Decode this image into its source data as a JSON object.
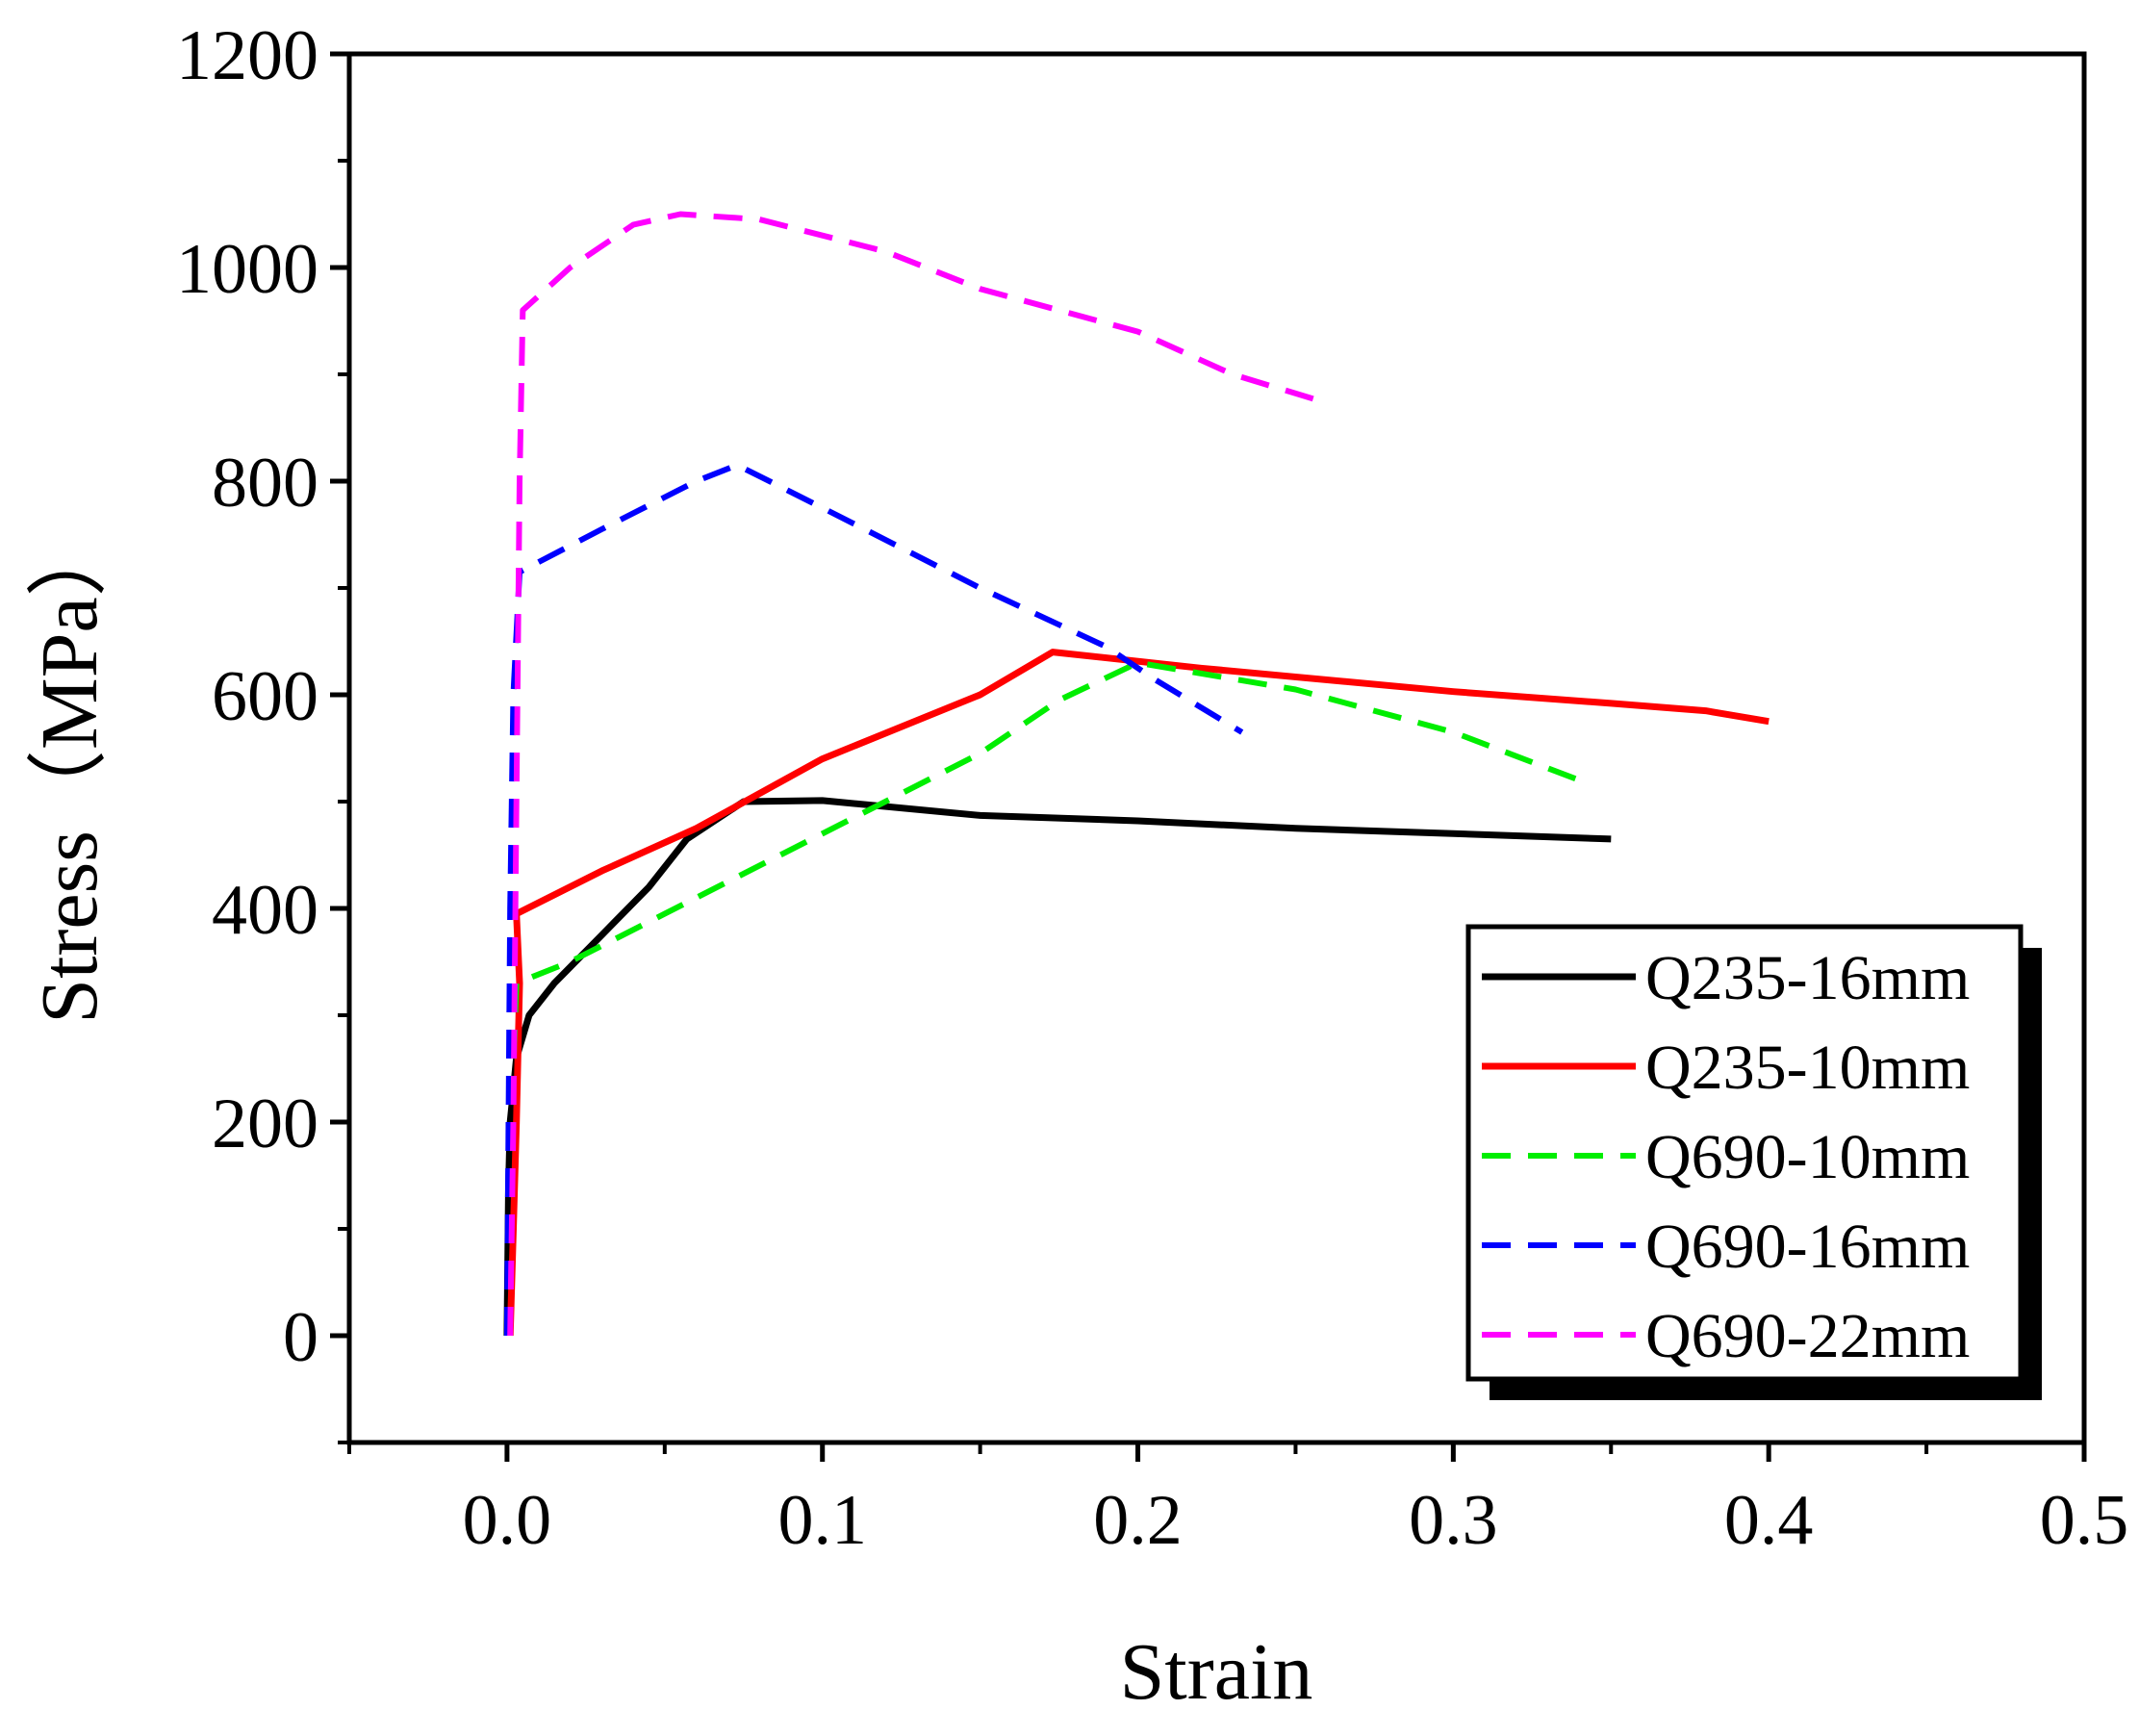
{
  "chart_data": {
    "type": "line",
    "title": "",
    "xlabel": "Strain",
    "ylabel": "Stress（MPa）",
    "xlim": [
      -0.05,
      0.5
    ],
    "ylim": [
      -100,
      1200
    ],
    "x_ticks": [
      0.0,
      0.1,
      0.2,
      0.3,
      0.4,
      0.5
    ],
    "x_tick_labels": [
      "0.0",
      "0.1",
      "0.2",
      "0.3",
      "0.4",
      "0.5"
    ],
    "y_ticks": [
      0,
      200,
      400,
      600,
      800,
      1000,
      1200
    ],
    "y_tick_labels": [
      "0",
      "200",
      "400",
      "600",
      "800",
      "1000",
      "1200"
    ],
    "grid": false,
    "legend_position": "bottom-right",
    "series": [
      {
        "name": "Q235-16mm",
        "color": "#000000",
        "style": "solid",
        "points": [
          [
            0,
            0
          ],
          [
            0.0005,
            140
          ],
          [
            0.001,
            200
          ],
          [
            0.003,
            260
          ],
          [
            0.007,
            300
          ],
          [
            0.015,
            330
          ],
          [
            0.03,
            375
          ],
          [
            0.045,
            420
          ],
          [
            0.057,
            465
          ],
          [
            0.075,
            500
          ],
          [
            0.1,
            501
          ],
          [
            0.15,
            487
          ],
          [
            0.2,
            482
          ],
          [
            0.25,
            475
          ],
          [
            0.3,
            470
          ],
          [
            0.35,
            465
          ]
        ]
      },
      {
        "name": "Q235-10mm",
        "color": "#ff0000",
        "style": "solid",
        "points": [
          [
            0.001,
            0
          ],
          [
            0.002,
            100
          ],
          [
            0.003,
            200
          ],
          [
            0.004,
            330
          ],
          [
            0.003,
            395
          ],
          [
            0.03,
            435
          ],
          [
            0.06,
            475
          ],
          [
            0.1,
            540
          ],
          [
            0.15,
            600
          ],
          [
            0.173,
            640
          ],
          [
            0.22,
            625
          ],
          [
            0.3,
            603
          ],
          [
            0.35,
            592
          ],
          [
            0.38,
            585
          ],
          [
            0.4,
            575
          ]
        ]
      },
      {
        "name": "Q690-10mm",
        "color": "#00ee00",
        "style": "dashed",
        "points": [
          [
            0,
            0
          ],
          [
            0.001,
            150
          ],
          [
            0.002,
            250
          ],
          [
            0.003,
            330
          ],
          [
            0.02,
            350
          ],
          [
            0.05,
            395
          ],
          [
            0.1,
            470
          ],
          [
            0.15,
            545
          ],
          [
            0.175,
            595
          ],
          [
            0.2,
            630
          ],
          [
            0.25,
            605
          ],
          [
            0.3,
            565
          ],
          [
            0.34,
            520
          ]
        ]
      },
      {
        "name": "Q690-16mm",
        "color": "#0000ff",
        "style": "dashed",
        "points": [
          [
            0,
            0
          ],
          [
            0.0005,
            200
          ],
          [
            0.001,
            400
          ],
          [
            0.002,
            600
          ],
          [
            0.004,
            715
          ],
          [
            0.03,
            755
          ],
          [
            0.06,
            800
          ],
          [
            0.073,
            815
          ],
          [
            0.1,
            775
          ],
          [
            0.15,
            700
          ],
          [
            0.19,
            645
          ],
          [
            0.205,
            615
          ],
          [
            0.233,
            565
          ]
        ]
      },
      {
        "name": "Q690-22mm",
        "color": "#ff00ff",
        "style": "dashed",
        "points": [
          [
            0.001,
            0
          ],
          [
            0.002,
            200
          ],
          [
            0.003,
            500
          ],
          [
            0.004,
            800
          ],
          [
            0.005,
            960
          ],
          [
            0.02,
            1000
          ],
          [
            0.04,
            1040
          ],
          [
            0.055,
            1050
          ],
          [
            0.08,
            1045
          ],
          [
            0.12,
            1015
          ],
          [
            0.15,
            980
          ],
          [
            0.2,
            940
          ],
          [
            0.23,
            900
          ],
          [
            0.258,
            875
          ]
        ]
      }
    ]
  }
}
